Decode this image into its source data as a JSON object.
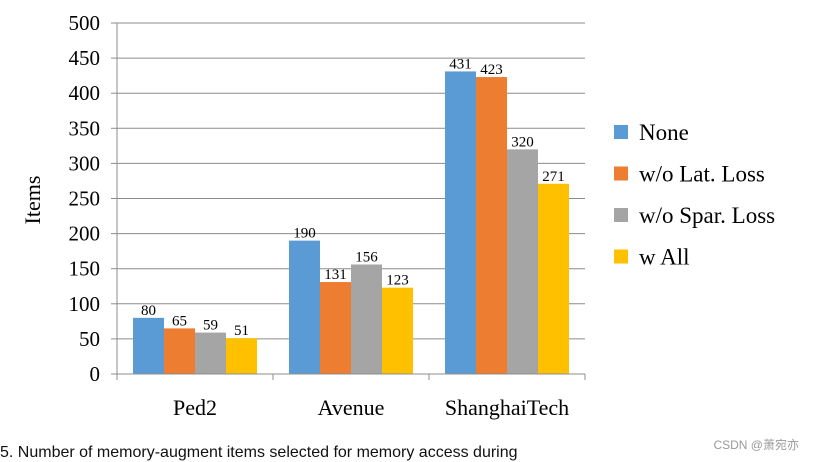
{
  "chart_data": {
    "type": "bar",
    "categories": [
      "Ped2",
      "Avenue",
      "ShanghaiTech"
    ],
    "series": [
      {
        "name": "None",
        "values": [
          80,
          190,
          431
        ],
        "color": "#5b9bd5"
      },
      {
        "name": "w/o Lat. Loss",
        "values": [
          65,
          131,
          423
        ],
        "color": "#ed7d31"
      },
      {
        "name": "w/o Spar. Loss",
        "values": [
          59,
          156,
          320
        ],
        "color": "#a5a5a5"
      },
      {
        "name": "w All",
        "values": [
          51,
          123,
          271
        ],
        "color": "#ffc000"
      }
    ],
    "ylabel": "Items",
    "ylim": [
      0,
      500
    ],
    "yticks": [
      0,
      50,
      100,
      150,
      200,
      250,
      300,
      350,
      400,
      450,
      500
    ],
    "grid": true,
    "legend": "right",
    "data_labels": true
  },
  "caption": "5.  Number of memory-augment items selected for memory access during",
  "watermark": "CSDN @萧宛亦"
}
